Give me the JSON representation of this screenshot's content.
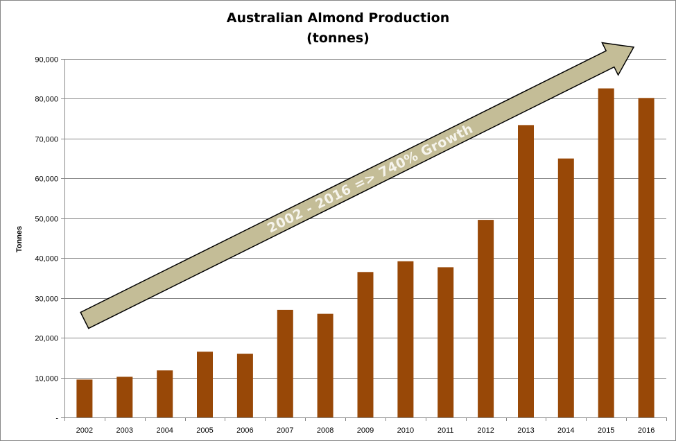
{
  "chart_data": {
    "type": "bar",
    "title": "Australian Almond Production",
    "subtitle": "(tonnes)",
    "ylabel": "Tonnes",
    "xlabel": "",
    "categories": [
      "2002",
      "2003",
      "2004",
      "2005",
      "2006",
      "2007",
      "2008",
      "2009",
      "2010",
      "2011",
      "2012",
      "2013",
      "2014",
      "2015",
      "2016"
    ],
    "values": [
      9500,
      10200,
      11800,
      16500,
      16000,
      27000,
      26000,
      36500,
      39200,
      37700,
      49600,
      73400,
      65000,
      82600,
      80200
    ],
    "ylim": [
      0,
      90000
    ],
    "yticks": [
      {
        "value": 0,
        "label": "-"
      },
      {
        "value": 10000,
        "label": "10,000"
      },
      {
        "value": 20000,
        "label": "20,000"
      },
      {
        "value": 30000,
        "label": "30,000"
      },
      {
        "value": 40000,
        "label": "40,000"
      },
      {
        "value": 50000,
        "label": "50,000"
      },
      {
        "value": 60000,
        "label": "60,000"
      },
      {
        "value": 70000,
        "label": "70,000"
      },
      {
        "value": 80000,
        "label": "80,000"
      },
      {
        "value": 90000,
        "label": "90,000"
      }
    ],
    "grid": true,
    "legend": "none",
    "bar_color": "#984807",
    "annotation": {
      "text": "2002 - 2016  => 740% Growth",
      "shape": "arrow",
      "fill": "#c4bd97"
    }
  }
}
